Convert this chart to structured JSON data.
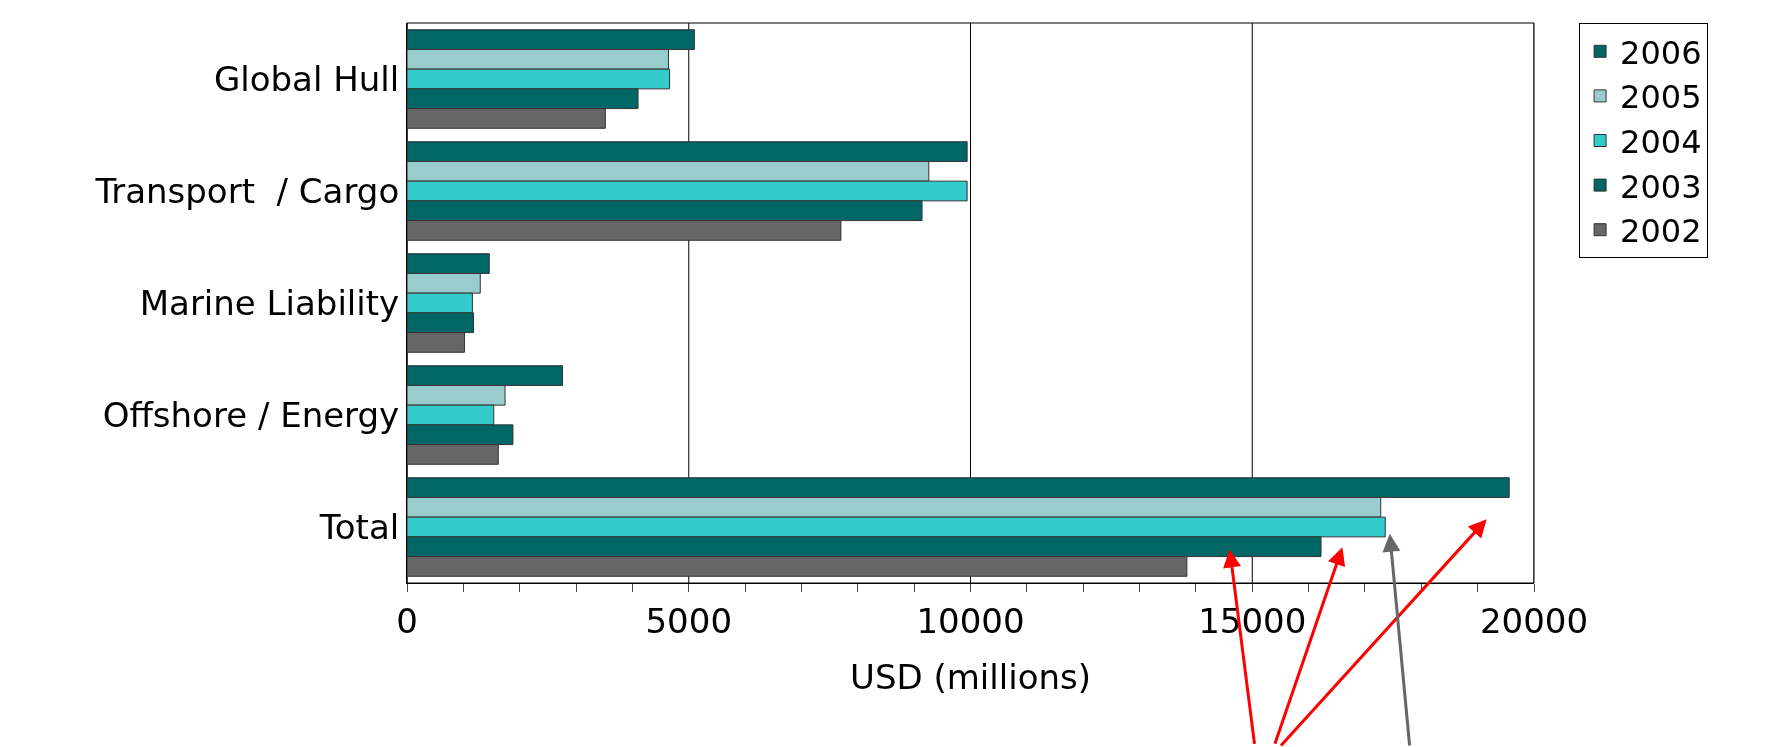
{
  "chart_data": {
    "type": "bar",
    "orientation": "horizontal",
    "xlabel": "USD (millions)",
    "categories": [
      "Global Hull",
      "Transport  / Cargo",
      "Marine Liability",
      "Offshore / Energy",
      "Total"
    ],
    "series": [
      {
        "name": "2006",
        "color": "#006666",
        "values": [
          5100,
          9940,
          1460,
          2760,
          19560
        ]
      },
      {
        "name": "2005",
        "color": "#99cccc",
        "values": [
          4640,
          9260,
          1300,
          1740,
          17280
        ]
      },
      {
        "name": "2004",
        "color": "#33cccc",
        "values": [
          4660,
          9940,
          1160,
          1540,
          17360
        ]
      },
      {
        "name": "2003",
        "color": "#006666",
        "values": [
          4100,
          9140,
          1180,
          1880,
          16220
        ]
      },
      {
        "name": "2002",
        "color": "#666666",
        "values": [
          3520,
          7700,
          1020,
          1620,
          13840
        ]
      }
    ],
    "xlim": [
      0,
      20000
    ],
    "xticks": [
      0,
      {
        "value": 1000,
        "label": null
      },
      {
        "value": 2000,
        "label": null
      },
      {
        "value": 3000,
        "label": null
      },
      {
        "value": 4000,
        "label": null
      },
      5000,
      {
        "value": 6000,
        "label": null
      },
      {
        "value": 7000,
        "label": null
      },
      {
        "value": 8000,
        "label": null
      },
      {
        "value": 9000,
        "label": null
      },
      10000,
      {
        "value": 11000,
        "label": null
      },
      {
        "value": 12000,
        "label": null
      },
      {
        "value": 13000,
        "label": null
      },
      {
        "value": 14000,
        "label": null
      },
      15000,
      {
        "value": 16000,
        "label": null
      },
      {
        "value": 17000,
        "label": null
      },
      {
        "value": 18000,
        "label": null
      },
      {
        "value": 19000,
        "label": null
      },
      20000
    ],
    "grid": "x",
    "legend": "top right"
  }
}
